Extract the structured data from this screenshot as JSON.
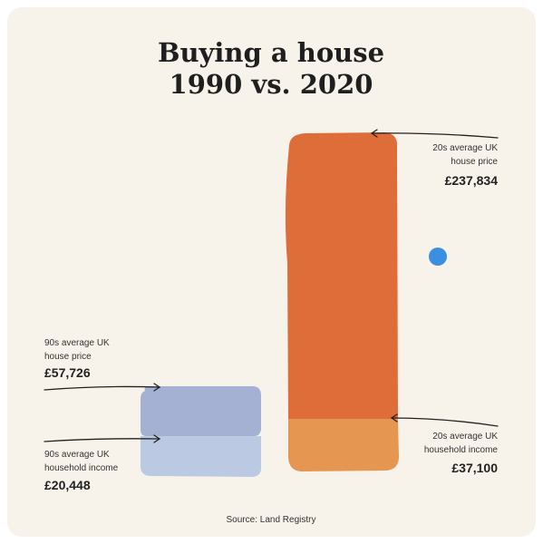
{
  "chart_data": {
    "type": "bar",
    "title_lines": [
      "Buying a house",
      "1990 vs. 2020"
    ],
    "source": "Source: Land Registry",
    "colors": {
      "house_1990": "#a4b1d3",
      "income_1990": "#bcc9e2",
      "house_2020": "#df6d3a",
      "income_2020": "#e59650",
      "dot": "#3b8fe0",
      "background": "#f8f3ea"
    },
    "bars": [
      {
        "period": "1990",
        "house_price": 57726,
        "household_income": 20448,
        "house_label": [
          "90s average UK",
          "house price"
        ],
        "house_value": "£57,726",
        "income_label": [
          "90s average UK",
          "household income"
        ],
        "income_value": "£20,448"
      },
      {
        "period": "2020",
        "house_price": 237834,
        "household_income": 37100,
        "house_label": [
          "20s average UK",
          "house price"
        ],
        "house_value": "£237,834",
        "income_label": [
          "20s average UK",
          "household income"
        ],
        "income_value": "£37,100"
      }
    ]
  }
}
